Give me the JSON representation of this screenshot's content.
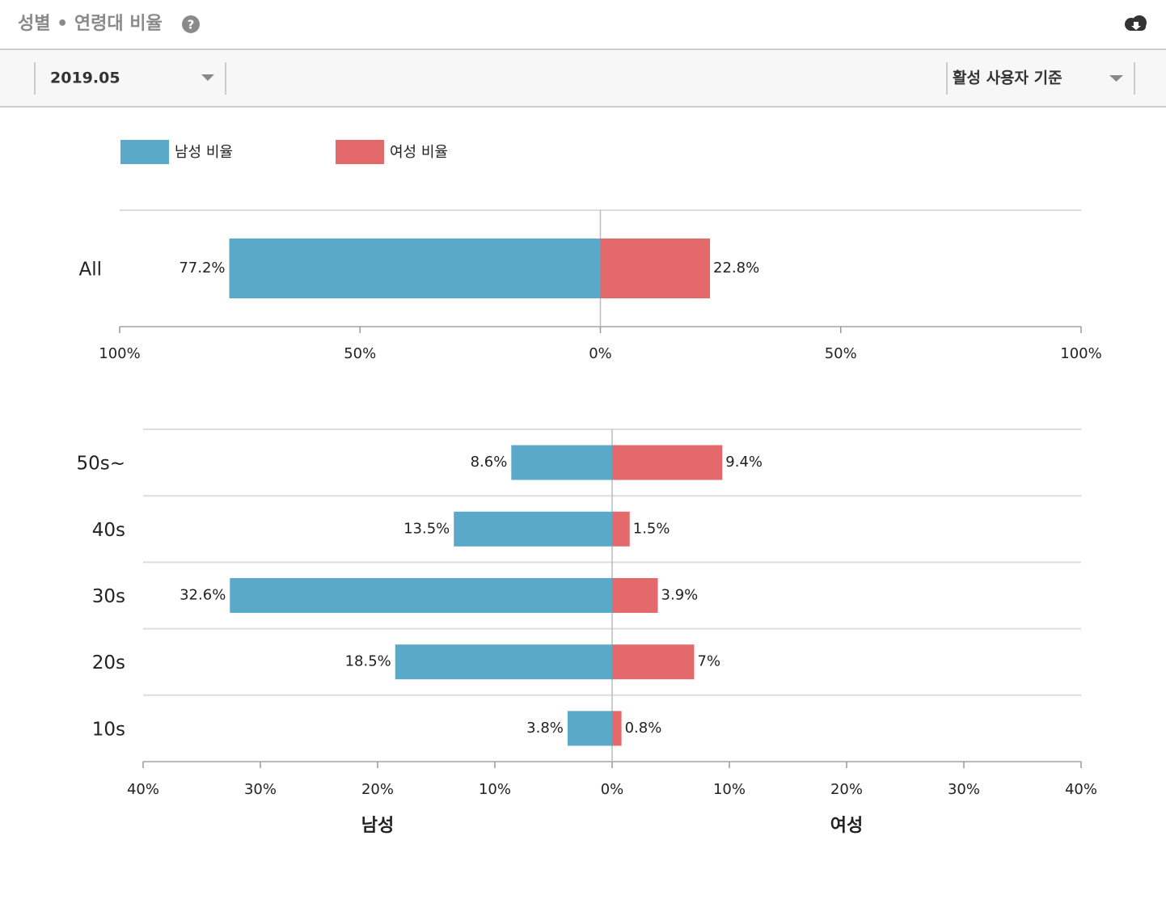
{
  "header": {
    "title": "성별 • 연령대 비율"
  },
  "toolbar": {
    "date": "2019.05",
    "basis": "활성 사용자 기준"
  },
  "chart_data": [
    {
      "type": "butterfly",
      "categories": [
        "All"
      ],
      "series": [
        {
          "name": "남성 비율",
          "color": "#5aa9c9",
          "values": [
            77.2
          ],
          "value_labels": [
            "77.2%"
          ]
        },
        {
          "name": "여성 비율",
          "color": "#e4696b",
          "values": [
            22.8
          ],
          "value_labels": [
            "22.8%"
          ]
        }
      ],
      "xlim": [
        -100,
        100
      ],
      "xticks": [
        {
          "value": -100,
          "label": "100%"
        },
        {
          "value": -50,
          "label": "50%"
        },
        {
          "value": 0,
          "label": "0%"
        },
        {
          "value": 50,
          "label": "50%"
        },
        {
          "value": 100,
          "label": "100%"
        }
      ],
      "legend": "top-left"
    },
    {
      "type": "butterfly",
      "categories": [
        "50s~",
        "40s",
        "30s",
        "20s",
        "10s"
      ],
      "series": [
        {
          "color": "#5aa9c9",
          "values": [
            8.6,
            13.5,
            32.6,
            18.5,
            3.8
          ],
          "value_labels": [
            "8.6%",
            "13.5%",
            "32.6%",
            "18.5%",
            "3.8%"
          ]
        },
        {
          "color": "#e4696b",
          "values": [
            9.4,
            1.5,
            3.9,
            7,
            0.8
          ],
          "value_labels": [
            "9.4%",
            "1.5%",
            "3.9%",
            "7%",
            "0.8%"
          ]
        }
      ],
      "xlim": [
        -40,
        40
      ],
      "xticks": [
        {
          "value": -40,
          "label": "40%"
        },
        {
          "value": -30,
          "label": "30%"
        },
        {
          "value": -20,
          "label": "20%"
        },
        {
          "value": -10,
          "label": "10%"
        },
        {
          "value": 0,
          "label": "0%"
        },
        {
          "value": 10,
          "label": "10%"
        },
        {
          "value": 20,
          "label": "20%"
        },
        {
          "value": 30,
          "label": "30%"
        },
        {
          "value": 40,
          "label": "40%"
        }
      ],
      "axis_labels": [
        "남성",
        "여성"
      ]
    }
  ]
}
